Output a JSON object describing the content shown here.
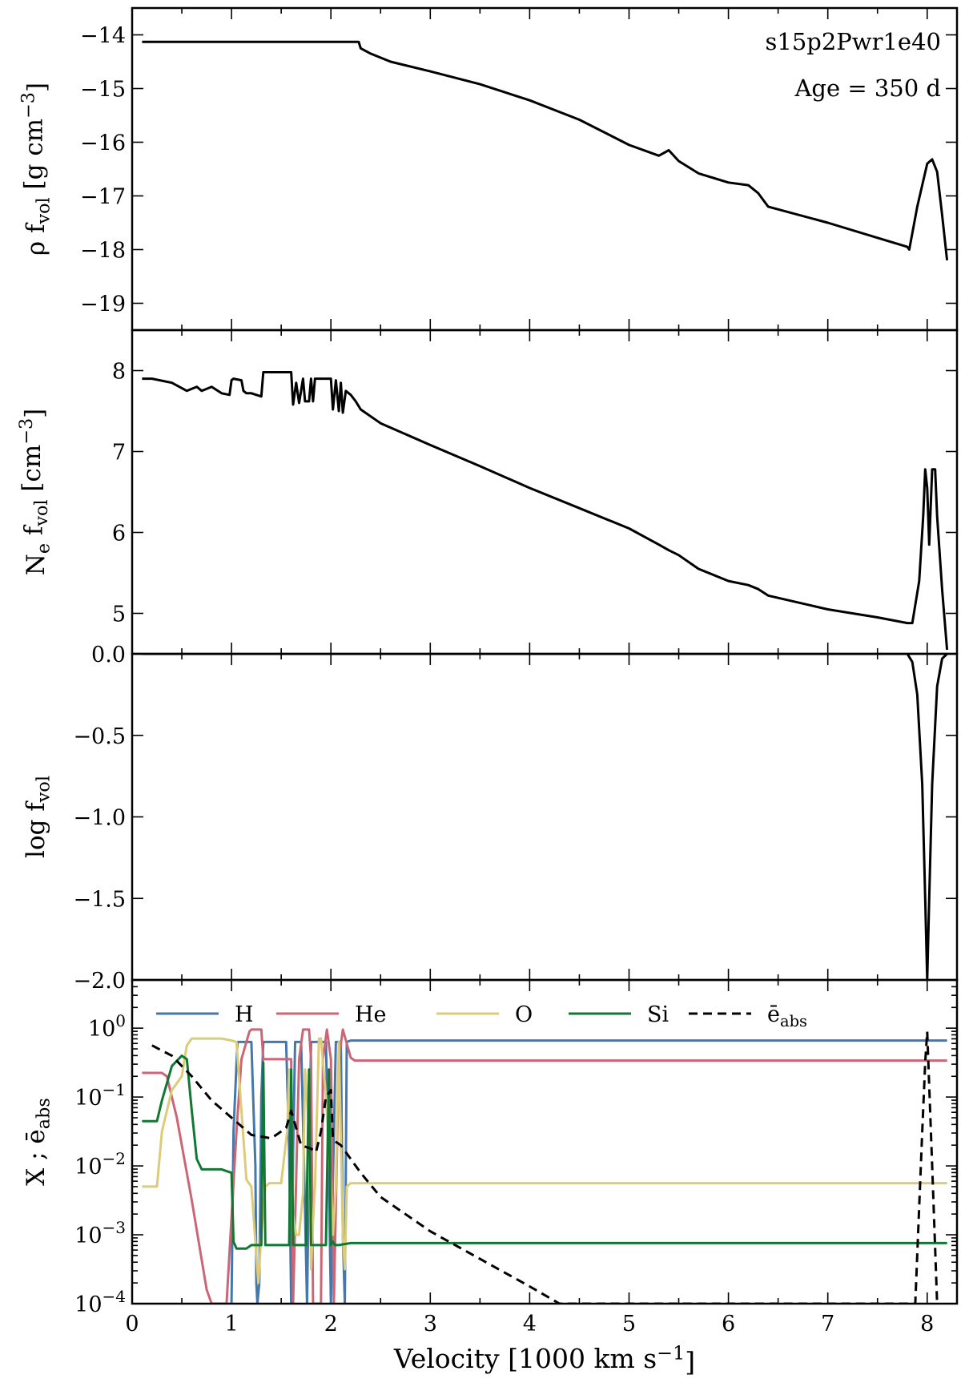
{
  "chart_data": [
    {
      "type": "line",
      "panel": 1,
      "ylabel": "ρ f_vol [g cm^−3]",
      "xlim": [
        0,
        8.3
      ],
      "ylim": [
        -19.5,
        -13.5
      ],
      "yticks": [
        -14,
        -15,
        -16,
        -17,
        -18,
        -19
      ],
      "ytick_labels": [
        "−14",
        "−15",
        "−16",
        "−17",
        "−18",
        "−19"
      ],
      "annotations": [
        "s15p2Pwr1e40",
        "Age = 350 d"
      ],
      "series": [
        {
          "color": "#000000",
          "style": "solid",
          "x": [
            0.1,
            0.5,
            1.0,
            1.5,
            2.0,
            2.28,
            2.3,
            2.4,
            2.6,
            3.0,
            3.5,
            4.0,
            4.5,
            5.0,
            5.3,
            5.4,
            5.5,
            5.7,
            6.0,
            6.2,
            6.3,
            6.4,
            7.0,
            7.5,
            7.8,
            7.82,
            7.9,
            8.0,
            8.05,
            8.1,
            8.15,
            8.2
          ],
          "y": [
            -14.13,
            -14.13,
            -14.13,
            -14.13,
            -14.13,
            -14.13,
            -14.25,
            -14.35,
            -14.5,
            -14.68,
            -14.92,
            -15.22,
            -15.58,
            -16.05,
            -16.25,
            -16.15,
            -16.35,
            -16.58,
            -16.75,
            -16.8,
            -16.95,
            -17.2,
            -17.5,
            -17.78,
            -17.95,
            -18.0,
            -17.2,
            -16.4,
            -16.32,
            -16.55,
            -17.35,
            -18.2
          ]
        }
      ]
    },
    {
      "type": "line",
      "panel": 2,
      "ylabel": "N_e f_vol [cm^−3]",
      "xlim": [
        0,
        8.3
      ],
      "ylim": [
        4.5,
        8.5
      ],
      "yticks": [
        5,
        6,
        7,
        8
      ],
      "ytick_labels": [
        "5",
        "6",
        "7",
        "8"
      ],
      "series": [
        {
          "color": "#000000",
          "style": "solid",
          "x": [
            0.1,
            0.2,
            0.4,
            0.55,
            0.65,
            0.7,
            0.8,
            0.9,
            0.98,
            1.0,
            1.02,
            1.1,
            1.12,
            1.15,
            1.2,
            1.3,
            1.32,
            1.35,
            1.4,
            1.6,
            1.62,
            1.65,
            1.68,
            1.72,
            1.74,
            1.78,
            1.8,
            1.82,
            1.84,
            2.0,
            2.02,
            2.05,
            2.08,
            2.1,
            2.12,
            2.15,
            2.2,
            2.25,
            2.3,
            2.5,
            3.0,
            3.5,
            4.0,
            4.5,
            5.0,
            5.3,
            5.4,
            5.5,
            5.7,
            6.0,
            6.2,
            6.3,
            6.4,
            7.0,
            7.5,
            7.8,
            7.85,
            7.92,
            7.96,
            7.98,
            8.0,
            8.02,
            8.05,
            8.08,
            8.1,
            8.15,
            8.2
          ],
          "y": [
            7.9,
            7.9,
            7.85,
            7.75,
            7.8,
            7.75,
            7.8,
            7.72,
            7.7,
            7.88,
            7.9,
            7.88,
            7.75,
            7.72,
            7.72,
            7.68,
            7.98,
            7.98,
            7.98,
            7.98,
            7.58,
            7.85,
            7.6,
            7.9,
            7.62,
            7.62,
            7.9,
            7.62,
            7.9,
            7.9,
            7.52,
            7.88,
            7.5,
            7.85,
            7.48,
            7.75,
            7.7,
            7.62,
            7.52,
            7.35,
            7.08,
            6.82,
            6.55,
            6.3,
            6.05,
            5.85,
            5.78,
            5.72,
            5.55,
            5.4,
            5.35,
            5.3,
            5.22,
            5.05,
            4.95,
            4.88,
            4.88,
            5.4,
            6.2,
            6.78,
            6.55,
            5.85,
            6.78,
            6.78,
            6.2,
            5.3,
            4.55
          ]
        }
      ]
    },
    {
      "type": "line",
      "panel": 3,
      "ylabel": "log f_vol",
      "xlim": [
        0,
        8.3
      ],
      "ylim": [
        -2.0,
        0.0
      ],
      "yticks": [
        0.0,
        -0.5,
        -1.0,
        -1.5,
        -2.0
      ],
      "ytick_labels": [
        "0.0",
        "−0.5",
        "−1.0",
        "−1.5",
        "−2.0"
      ],
      "series": [
        {
          "color": "#000000",
          "style": "solid",
          "x": [
            0.1,
            7.8,
            7.85,
            7.9,
            7.95,
            7.98,
            8.0,
            8.02,
            8.05,
            8.1,
            8.15,
            8.2
          ],
          "y": [
            0.0,
            0.0,
            -0.05,
            -0.25,
            -0.8,
            -1.5,
            -2.0,
            -1.5,
            -0.8,
            -0.2,
            -0.03,
            0.0
          ]
        }
      ]
    },
    {
      "type": "line",
      "panel": 4,
      "xlabel": "Velocity [1000 km s^−1]",
      "ylabel": "X ; ē_abs",
      "xlim": [
        0,
        8.3
      ],
      "ylim_log10": [
        -4,
        0.7
      ],
      "log_scale_y": true,
      "yticks_log10": [
        0,
        -1,
        -2,
        -3,
        -4
      ],
      "ytick_labels": [
        "10^0",
        "10^−1",
        "10^−2",
        "10^−3",
        "10^−4"
      ],
      "xticks": [
        0,
        1,
        2,
        3,
        4,
        5,
        6,
        7,
        8
      ],
      "xtick_labels": [
        "0",
        "1",
        "2",
        "3",
        "4",
        "5",
        "6",
        "7",
        "8"
      ],
      "legend_placement": "top",
      "series": [
        {
          "name": "H",
          "color": "#4477AA",
          "style": "solid",
          "x": [
            1.0,
            1.02,
            1.06,
            1.2,
            1.24,
            1.25,
            1.26,
            1.28,
            1.3,
            1.32,
            1.35,
            1.55,
            1.58,
            1.6,
            1.62,
            1.64,
            1.7,
            1.73,
            1.76,
            1.78,
            1.8,
            1.84,
            1.88,
            1.95,
            1.98,
            2.0,
            2.02,
            2.05,
            2.1,
            2.12,
            2.14,
            2.16,
            2.2,
            8.2
          ],
          "y": [
            -4,
            -1.5,
            -0.2,
            -0.2,
            -2.0,
            -3.7,
            -4,
            -3.7,
            -1.0,
            -0.2,
            -0.2,
            -0.2,
            -1.8,
            -4,
            -1.8,
            -0.2,
            -0.2,
            -2.0,
            -4,
            -2.0,
            -0.2,
            -0.2,
            -0.2,
            -0.2,
            -2.2,
            -4,
            -2.2,
            -0.2,
            -0.2,
            -3.0,
            -4,
            -0.2,
            -0.18,
            -0.18
          ]
        },
        {
          "name": "He",
          "color": "#CC6677",
          "style": "solid",
          "x": [
            0.1,
            0.3,
            0.35,
            0.45,
            0.6,
            0.75,
            0.8,
            0.88,
            0.92,
            0.95,
            1.05,
            1.1,
            1.18,
            1.2,
            1.3,
            1.32,
            1.4,
            1.6,
            1.62,
            1.68,
            1.72,
            1.78,
            1.8,
            1.82,
            1.9,
            1.92,
            1.96,
            2.0,
            2.03,
            2.08,
            2.12,
            2.2,
            2.24,
            8.2
          ],
          "y": [
            -0.65,
            -0.65,
            -0.7,
            -1.3,
            -2.5,
            -3.8,
            -4,
            -4,
            -4,
            -4,
            -1.5,
            -0.45,
            -0.05,
            -0.02,
            -0.02,
            -0.45,
            -0.45,
            -0.45,
            -4,
            -0.45,
            -0.02,
            -0.02,
            -0.45,
            -4,
            -4,
            -0.45,
            -0.02,
            -0.45,
            -4,
            -0.45,
            -0.02,
            -0.43,
            -0.47,
            -0.47
          ]
        },
        {
          "name": "O",
          "color": "#DDCC77",
          "style": "solid",
          "x": [
            0.1,
            0.25,
            0.3,
            0.4,
            0.5,
            0.55,
            0.6,
            0.9,
            1.0,
            1.05,
            1.1,
            1.15,
            1.2,
            1.25,
            1.27,
            1.3,
            1.34,
            1.38,
            1.42,
            1.5,
            1.56,
            1.58,
            1.6,
            1.62,
            1.65,
            1.68,
            1.72,
            1.74,
            1.78,
            1.8,
            1.82,
            1.84,
            1.88,
            1.9,
            1.95,
            2.0,
            2.02,
            2.05,
            2.08,
            2.12,
            2.14,
            2.16,
            2.2,
            8.2
          ],
          "y": [
            -2.3,
            -2.3,
            -1.5,
            -0.9,
            -0.7,
            -0.25,
            -0.15,
            -0.15,
            -0.18,
            -0.2,
            -1.2,
            -2.2,
            -2.3,
            -3.3,
            -3.7,
            -3.0,
            -2.3,
            -2.25,
            -2.25,
            -2.25,
            -1.5,
            -0.6,
            -1.0,
            -2.7,
            -3.0,
            -3.0,
            -2.4,
            -0.6,
            -1.5,
            -3.5,
            -2.8,
            -2.3,
            -0.15,
            -0.15,
            -1.0,
            -2.3,
            -3.0,
            -2.3,
            -0.2,
            -3.0,
            -3.5,
            -2.3,
            -2.25,
            -2.25
          ]
        },
        {
          "name": "Si",
          "color": "#117733",
          "style": "solid",
          "x": [
            0.1,
            0.25,
            0.3,
            0.4,
            0.5,
            0.55,
            0.6,
            0.65,
            0.7,
            0.9,
            1.0,
            1.02,
            1.05,
            1.15,
            1.2,
            1.3,
            1.32,
            1.34,
            1.55,
            1.58,
            1.6,
            1.62,
            1.65,
            1.75,
            1.78,
            1.8,
            1.82,
            1.84,
            1.9,
            1.95,
            1.98,
            2.0,
            2.02,
            2.04,
            2.08,
            2.2,
            8.2
          ],
          "y": [
            -1.35,
            -1.35,
            -1.05,
            -0.55,
            -0.4,
            -0.45,
            -1.2,
            -1.9,
            -2.05,
            -2.05,
            -2.1,
            -3.1,
            -3.2,
            -3.2,
            -3.15,
            -3.15,
            -0.5,
            -3.15,
            -3.15,
            -3.15,
            -0.6,
            -3.15,
            -3.15,
            -3.15,
            -0.6,
            -3.15,
            -3.15,
            -3.15,
            -3.15,
            -3.15,
            -0.6,
            -3.15,
            -3.1,
            -3.15,
            -3.15,
            -3.12,
            -3.12
          ]
        },
        {
          "name": "ē_abs",
          "color": "#000000",
          "style": "dashed",
          "x": [
            0.2,
            0.4,
            0.6,
            0.8,
            1.0,
            1.2,
            1.4,
            1.55,
            1.6,
            1.7,
            1.8,
            1.85,
            1.9,
            1.95,
            2.0,
            2.02,
            2.05,
            2.1,
            2.15,
            2.2,
            2.3,
            2.5,
            3.0,
            3.5,
            4.0,
            4.3,
            7.88,
            7.95,
            7.98,
            8.0,
            8.05,
            8.1
          ],
          "y": [
            -0.25,
            -0.4,
            -0.7,
            -1.05,
            -1.3,
            -1.55,
            -1.6,
            -1.45,
            -1.2,
            -1.7,
            -1.75,
            -1.8,
            -1.5,
            -1.0,
            -0.9,
            -1.6,
            -1.65,
            -1.7,
            -1.8,
            -1.9,
            -2.1,
            -2.45,
            -2.95,
            -3.35,
            -3.75,
            -4,
            -4,
            -1.5,
            -0.5,
            -0.05,
            -2.0,
            -4
          ]
        }
      ]
    }
  ]
}
